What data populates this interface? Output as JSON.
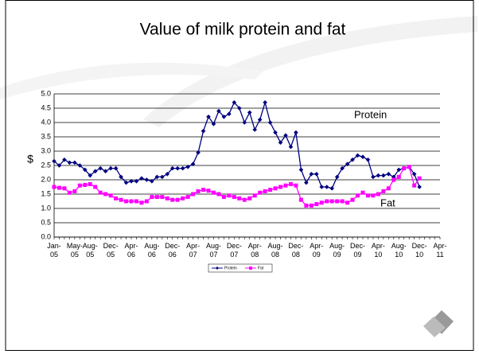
{
  "chart_data": {
    "type": "line",
    "title": "Value of milk protein and fat",
    "ylabel": "$",
    "categories": [
      "Jan-05",
      null,
      null,
      null,
      "May-05",
      null,
      null,
      "Aug-05",
      null,
      null,
      null,
      "Dec-05",
      null,
      null,
      null,
      "Apr-06",
      null,
      null,
      null,
      "Aug-06",
      null,
      null,
      null,
      "Dec-06",
      null,
      null,
      null,
      "Apr-07",
      null,
      null,
      null,
      "Aug-07",
      null,
      null,
      null,
      "Dec-07",
      null,
      null,
      null,
      "Apr-08",
      null,
      null,
      null,
      "Aug-08",
      null,
      null,
      null,
      "Dec-08",
      null,
      null,
      null,
      "Apr-09",
      null,
      null,
      null,
      "Aug-09",
      null,
      null,
      null,
      "Dec-09",
      null,
      null,
      null,
      "Apr-10",
      null,
      null,
      null,
      "Aug-10",
      null,
      null,
      null,
      "Dec-10",
      null,
      null,
      null,
      "Apr-11"
    ],
    "series": [
      {
        "name": "Protein",
        "color": "#000080",
        "marker": "diamond",
        "values": [
          2.65,
          2.5,
          2.7,
          2.6,
          2.6,
          2.5,
          2.35,
          2.15,
          2.3,
          2.4,
          2.3,
          2.4,
          2.4,
          2.1,
          1.9,
          1.95,
          1.95,
          2.05,
          2.0,
          1.95,
          2.1,
          2.1,
          2.2,
          2.4,
          2.4,
          2.4,
          2.45,
          2.55,
          2.95,
          3.7,
          4.2,
          3.95,
          4.4,
          4.2,
          4.3,
          4.7,
          4.5,
          4.0,
          4.35,
          3.75,
          4.1,
          4.7,
          4.0,
          3.65,
          3.3,
          3.55,
          3.15,
          3.65,
          2.35,
          1.9,
          2.2,
          2.2,
          1.75,
          1.75,
          1.7,
          2.1,
          2.4,
          2.55,
          2.7,
          2.85,
          2.8,
          2.7,
          2.1,
          2.15,
          2.15,
          2.2,
          2.1,
          2.35,
          2.4,
          2.45,
          2.2,
          1.75,
          null,
          null,
          null,
          null
        ]
      },
      {
        "name": "Fat",
        "color": "#ff00ff",
        "marker": "square",
        "values": [
          1.75,
          1.72,
          1.7,
          1.55,
          1.6,
          1.8,
          1.82,
          1.85,
          1.75,
          1.55,
          1.5,
          1.45,
          1.35,
          1.3,
          1.25,
          1.25,
          1.25,
          1.2,
          1.25,
          1.4,
          1.4,
          1.4,
          1.35,
          1.3,
          1.3,
          1.35,
          1.4,
          1.5,
          1.6,
          1.65,
          1.62,
          1.55,
          1.5,
          1.4,
          1.45,
          1.4,
          1.35,
          1.3,
          1.35,
          1.45,
          1.55,
          1.6,
          1.65,
          1.7,
          1.75,
          1.8,
          1.85,
          1.8,
          1.3,
          1.1,
          1.1,
          1.15,
          1.2,
          1.25,
          1.25,
          1.25,
          1.25,
          1.2,
          1.3,
          1.45,
          1.55,
          1.45,
          1.45,
          1.5,
          1.6,
          1.7,
          2.0,
          2.1,
          2.4,
          2.45,
          1.8,
          2.05,
          null,
          null,
          null,
          null
        ]
      }
    ],
    "annotations": [
      "Protein",
      "Fat"
    ],
    "ylim": [
      0,
      5
    ],
    "yticks": [
      {
        "value": 0,
        "label": "0.0"
      },
      0.5,
      {
        "value": 1,
        "label": "1.0"
      },
      1.5,
      {
        "value": 2,
        "label": "2.0"
      },
      2.5,
      {
        "value": 3,
        "label": "3.0"
      },
      3.5,
      {
        "value": 4,
        "label": "4.0"
      },
      4.5,
      {
        "value": 5,
        "label": "5.0"
      }
    ],
    "grid": true,
    "legend": "bottom"
  }
}
